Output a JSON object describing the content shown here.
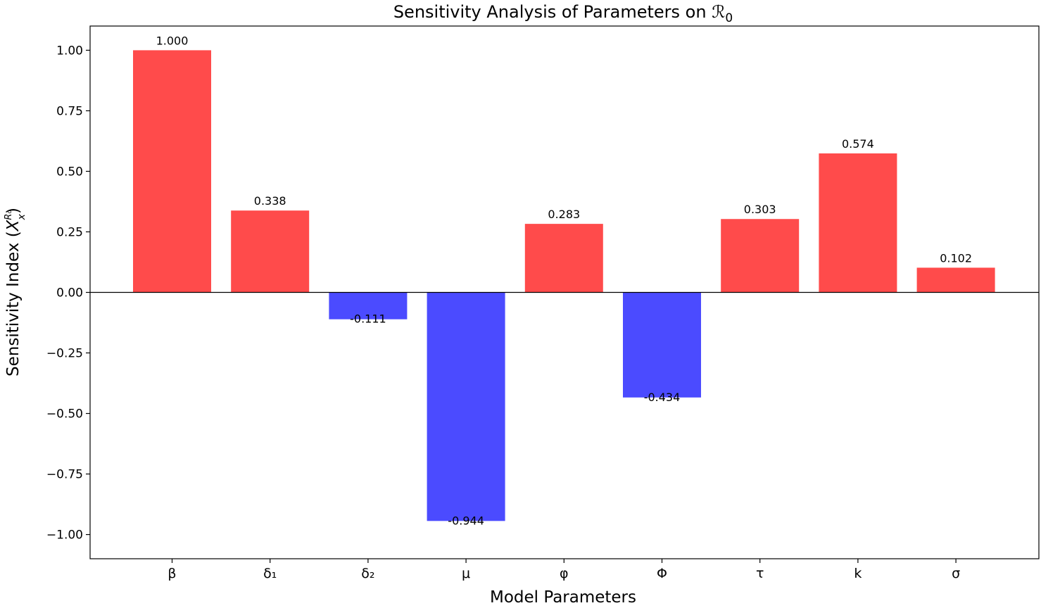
{
  "chart_data": {
    "type": "bar",
    "title_text": "Sensitivity Analysis of Parameters on ",
    "title_symbol": "ℛ",
    "title_subscript": "0",
    "xlabel": "Model Parameters",
    "ylabel_text": "Sensitivity Index (",
    "ylabel_symbol": "X",
    "ylabel_sub": "x",
    "ylabel_sup": "R₀",
    "ylabel_close": ")",
    "categories": [
      "β",
      "δ₁",
      "δ₂",
      "μ",
      "φ",
      "Φ",
      "τ",
      "k",
      "σ"
    ],
    "values": [
      1.0,
      0.338,
      -0.111,
      -0.944,
      0.283,
      -0.434,
      0.303,
      0.574,
      0.102
    ],
    "value_labels": [
      "1.000",
      "0.338",
      "-0.111",
      "-0.944",
      "0.283",
      "-0.434",
      "0.303",
      "0.574",
      "0.102"
    ],
    "ylim": [
      -1.1,
      1.1
    ],
    "yticks": [
      1.0,
      0.75,
      0.5,
      0.25,
      0.0,
      -0.25,
      -0.5,
      -0.75,
      -1.0
    ],
    "ytick_labels": [
      "1.00",
      "0.75",
      "0.50",
      "0.25",
      "0.00",
      "−0.25",
      "−0.50",
      "−0.75",
      "−1.00"
    ],
    "colors": {
      "positive": "#ff4b4b",
      "negative": "#4b4bff",
      "zero_line": "#000000",
      "frame": "#000000"
    },
    "grid": false,
    "legend": "none"
  }
}
